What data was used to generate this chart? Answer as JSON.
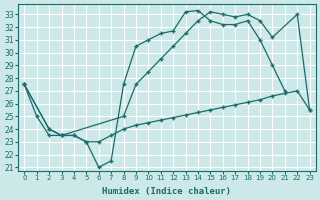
{
  "xlabel": "Humidex (Indice chaleur)",
  "bg_color": "#cce8e8",
  "grid_color": "#ffffff",
  "line_color": "#1a6b6b",
  "xlim": [
    -0.5,
    23.5
  ],
  "ylim": [
    20.7,
    33.8
  ],
  "xticks": [
    0,
    1,
    2,
    3,
    4,
    5,
    6,
    7,
    8,
    9,
    10,
    11,
    12,
    13,
    14,
    15,
    16,
    17,
    18,
    19,
    20,
    21,
    22,
    23
  ],
  "yticks": [
    21,
    22,
    23,
    24,
    25,
    26,
    27,
    28,
    29,
    30,
    31,
    32,
    33
  ],
  "line1_x": [
    0,
    1,
    2,
    3,
    4,
    5,
    6,
    7,
    8,
    9,
    10,
    11,
    12,
    13,
    14,
    15,
    16,
    17,
    18,
    19,
    20,
    21
  ],
  "line1_y": [
    27.5,
    25.0,
    23.5,
    23.5,
    23.5,
    23.0,
    21.0,
    21.5,
    27.5,
    30.5,
    31.0,
    31.5,
    31.7,
    33.2,
    33.3,
    32.5,
    32.2,
    32.2,
    32.5,
    31.0,
    29.0,
    27.0
  ],
  "line2_x": [
    0,
    2,
    3,
    4,
    5,
    6,
    7,
    8,
    9,
    10,
    11,
    12,
    13,
    14,
    15,
    16,
    17,
    18,
    19,
    20,
    21,
    22,
    23
  ],
  "line2_y": [
    27.5,
    24.0,
    23.5,
    23.5,
    23.0,
    23.0,
    23.5,
    24.0,
    24.3,
    24.5,
    24.7,
    24.9,
    25.1,
    25.3,
    25.5,
    25.7,
    25.9,
    26.1,
    26.3,
    26.6,
    26.8,
    27.0,
    25.5
  ],
  "line3_x": [
    0,
    2,
    3,
    8,
    9,
    10,
    11,
    12,
    13,
    14,
    15,
    16,
    17,
    18,
    19,
    20,
    22,
    23
  ],
  "line3_y": [
    27.5,
    24.0,
    23.5,
    25.0,
    27.5,
    28.5,
    29.5,
    30.5,
    31.5,
    32.5,
    33.2,
    33.0,
    32.8,
    33.0,
    32.5,
    31.2,
    33.0,
    25.5
  ]
}
